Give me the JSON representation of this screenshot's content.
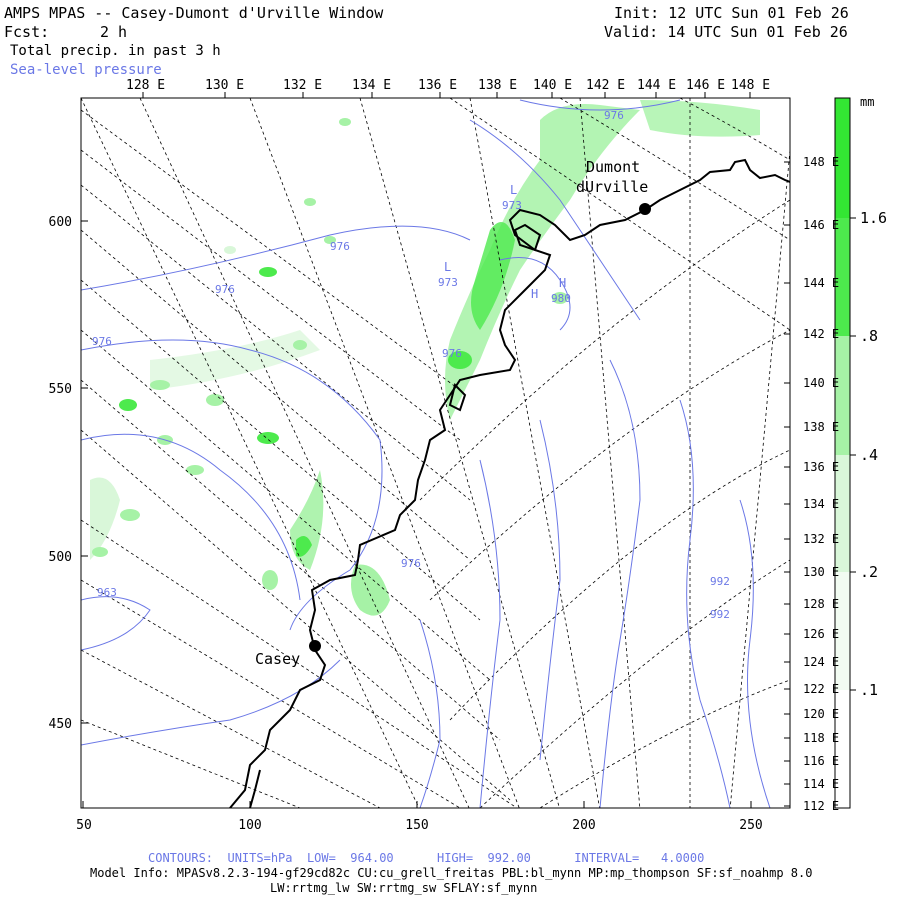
{
  "header": {
    "title": "AMPS MPAS -- Casey-Dumont d'Urville Window",
    "fcst_label": "Fcst:",
    "fcst_value": "2 h",
    "field": "Total precip. in past 3 h",
    "overlay": "Sea-level pressure",
    "init": "Init: 12 UTC Sun 01 Feb 26",
    "valid": "Valid: 14 UTC Sun 01 Feb 26"
  },
  "axes": {
    "top_lon": [
      "128 E",
      "130 E",
      "132 E",
      "134 E",
      "136 E",
      "138 E",
      "140 E",
      "142 E",
      "144 E",
      "146 E",
      "148 E"
    ],
    "right_lon": [
      "148 E",
      "146 E",
      "144 E",
      "142 E",
      "140 E",
      "138 E",
      "136 E",
      "134 E",
      "132 E",
      "130 E",
      "128 E",
      "126 E",
      "124 E",
      "122 E",
      "120 E",
      "118 E",
      "116 E",
      "114 E",
      "112 E"
    ],
    "left_y": [
      "600",
      "550",
      "500",
      "450"
    ],
    "bottom_x": [
      "50",
      "100",
      "150",
      "200",
      "250"
    ]
  },
  "colorbar": {
    "unit": "mm",
    "labels": [
      "1.6",
      ".8",
      ".4",
      ".2",
      ".1"
    ],
    "colors": [
      "#33e633",
      "#4dea4d",
      "#a6f2a6",
      "#d9f7d9",
      "#f2fcf2"
    ]
  },
  "places": [
    {
      "name": "Dumont\ndUrville"
    },
    {
      "name": "Casey"
    }
  ],
  "pressure_labels": [
    "976",
    "976",
    "976",
    "976",
    "976",
    "976",
    "973",
    "973",
    "980",
    "963",
    "992",
    "992"
  ],
  "pressure_marks": [
    "L",
    "L",
    "H",
    "H"
  ],
  "footer": {
    "contours": "CONTOURS:  UNITS=hPa  LOW=  964.00      HIGH=  992.00      INTERVAL=   4.0000",
    "model_info": "Model Info: MPASv8.2.3-194-gf29cd82c CU:cu_grell_freitas PBL:bl_mynn MP:mp_thompson SF:sf_noahmp 8.0",
    "model_info2": "LW:rrtmg_lw SW:rrtmg_sw SFLAY:sf_mynn"
  }
}
